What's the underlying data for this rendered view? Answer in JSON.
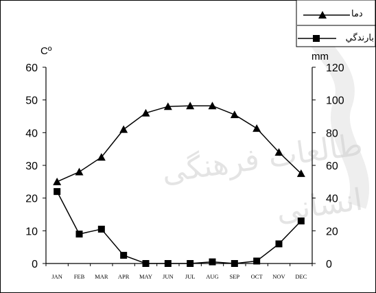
{
  "chart_data": {
    "type": "line",
    "title": "",
    "categories": [
      "JAN",
      "FEB",
      "MAR",
      "APR",
      "MAY",
      "JUN",
      "JUL",
      "AUG",
      "SEP",
      "OCT",
      "NOV",
      "DEC"
    ],
    "y_left": {
      "unit": "Cº",
      "ylim": [
        0,
        60
      ],
      "ticks": [
        0,
        10,
        20,
        30,
        40,
        50,
        60
      ]
    },
    "y_right": {
      "unit": "mm",
      "ylim": [
        0,
        120
      ],
      "ticks": [
        0,
        20,
        40,
        60,
        80,
        100,
        120
      ]
    },
    "series": [
      {
        "name": "دما",
        "axis": "left",
        "marker": "triangle",
        "values": [
          25,
          28,
          32.5,
          41,
          46,
          48,
          48.2,
          48.2,
          45.5,
          41.3,
          34,
          27.5
        ]
      },
      {
        "name": "بارندگي",
        "axis": "right",
        "marker": "square",
        "values": [
          44,
          18,
          21,
          5,
          0,
          0,
          0,
          1,
          0,
          1.5,
          12,
          26
        ]
      }
    ],
    "grid": false,
    "legend_position": "top-right"
  },
  "watermark": {
    "lines": [
      "طالعات فرهنگی",
      "انسانی"
    ]
  }
}
